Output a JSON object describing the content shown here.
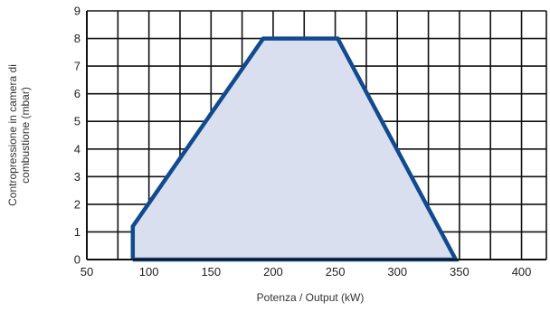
{
  "chart_data": {
    "type": "area",
    "xlabel": "Potenza / Output (kW)",
    "ylabel_lines": [
      "Contropressione in camera di",
      "combustione (mbar)"
    ],
    "xlim": [
      50,
      420
    ],
    "ylim": [
      0,
      9
    ],
    "x_ticks": [
      50,
      100,
      150,
      200,
      250,
      300,
      350,
      400
    ],
    "y_ticks": [
      0,
      1,
      2,
      3,
      4,
      5,
      6,
      7,
      8,
      9
    ],
    "grid": true,
    "series": [
      {
        "points": [
          {
            "x": 87,
            "y": 0
          },
          {
            "x": 87,
            "y": 1.2
          },
          {
            "x": 192,
            "y": 8
          },
          {
            "x": 252,
            "y": 8
          },
          {
            "x": 347,
            "y": 0
          }
        ],
        "fill_color": "#dadff0",
        "line_color": "#114a8f"
      }
    ],
    "colors": {
      "grid": "#111111",
      "axis": "#111111"
    }
  }
}
